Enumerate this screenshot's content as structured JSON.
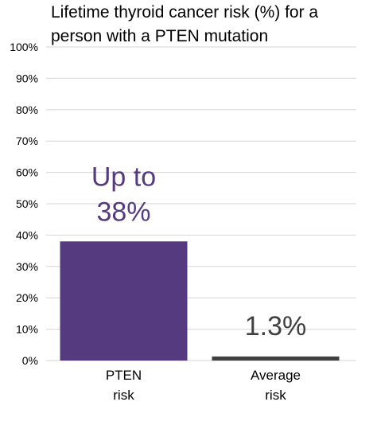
{
  "chart_data": {
    "type": "bar",
    "title_lines": [
      "Lifetime thyroid cancer risk (%) for a",
      "person with a PTEN mutation"
    ],
    "categories": [
      [
        "PTEN",
        "risk"
      ],
      [
        "Average",
        "risk"
      ]
    ],
    "values": [
      38,
      1.3
    ],
    "data_labels": [
      [
        "Up to",
        "38%"
      ],
      [
        "1.3%"
      ]
    ],
    "bar_colors": [
      "#553a80",
      "#404040"
    ],
    "label_colors": [
      "#553a80",
      "#404040"
    ],
    "yticks": [
      "0%",
      "10%",
      "20%",
      "30%",
      "40%",
      "50%",
      "60%",
      "70%",
      "80%",
      "90%",
      "100%"
    ],
    "ylim": [
      0,
      100
    ],
    "grid": true,
    "legend": "none"
  }
}
